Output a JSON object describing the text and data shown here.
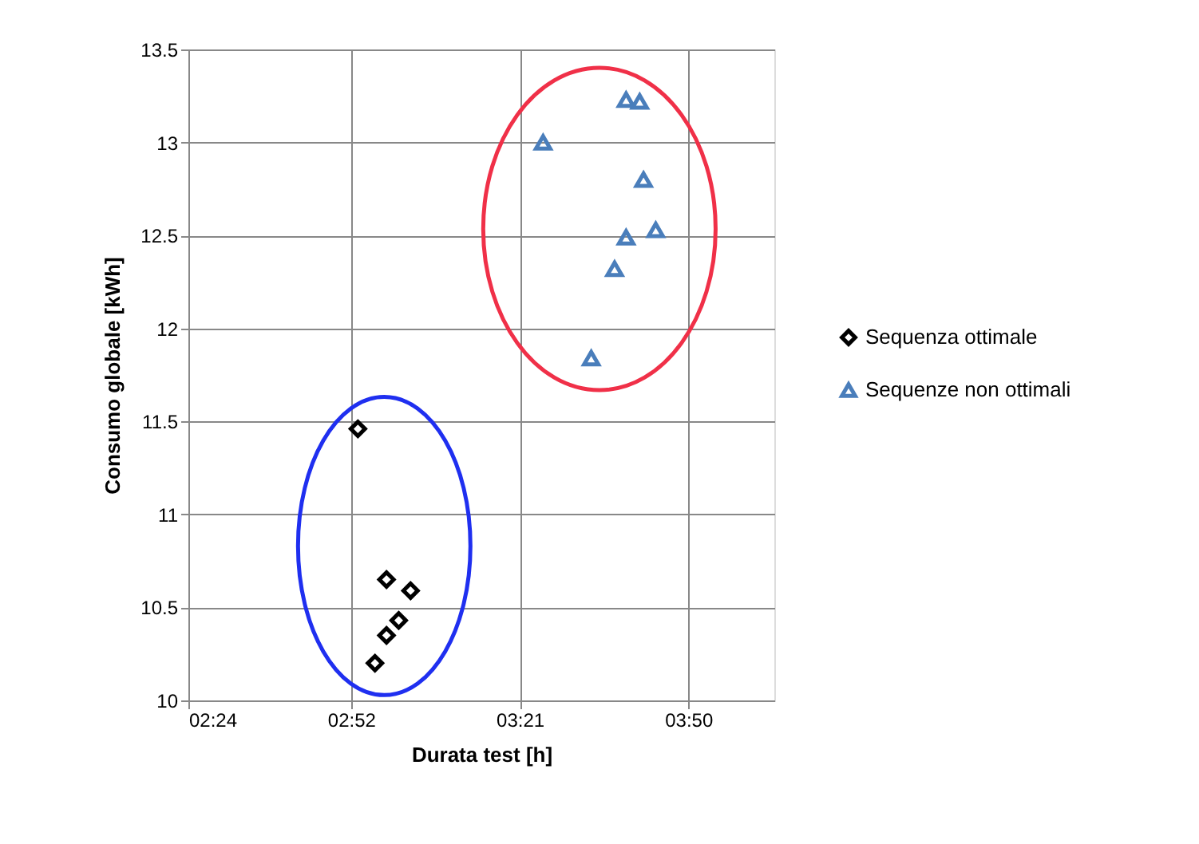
{
  "chart_data": {
    "type": "scatter",
    "xlabel": "Durata test [h]",
    "ylabel": "Consumo globale [kWh]",
    "xlim": [
      2.4,
      4.08
    ],
    "xticks": [
      {
        "value": 2.4,
        "label": "02:24"
      },
      {
        "value": 2.8667,
        "label": "02:52"
      },
      {
        "value": 3.35,
        "label": "03:21"
      },
      {
        "value": 3.8333,
        "label": "03:50"
      }
    ],
    "ylim": [
      10,
      13.5
    ],
    "yticks": [
      10,
      10.5,
      11,
      11.5,
      12,
      12.5,
      13,
      13.5
    ],
    "grid": true,
    "legend": "right",
    "series": [
      {
        "name": "Sequenza ottimale",
        "color": "#000000",
        "marker": "diamond",
        "x": [
          2.886,
          2.968,
          3.037,
          3.003,
          2.968,
          2.935
        ],
        "values": [
          11.46,
          10.65,
          10.59,
          10.43,
          10.35,
          10.2
        ]
      },
      {
        "name": "Sequenze non ottimali",
        "color": "#4a7ebb",
        "marker": "triangle",
        "x": [
          3.417,
          3.655,
          3.694,
          3.705,
          3.74,
          3.655,
          3.622,
          3.555
        ],
        "values": [
          13.0,
          13.23,
          13.22,
          12.8,
          12.53,
          12.49,
          12.32,
          11.84
        ]
      }
    ]
  }
}
